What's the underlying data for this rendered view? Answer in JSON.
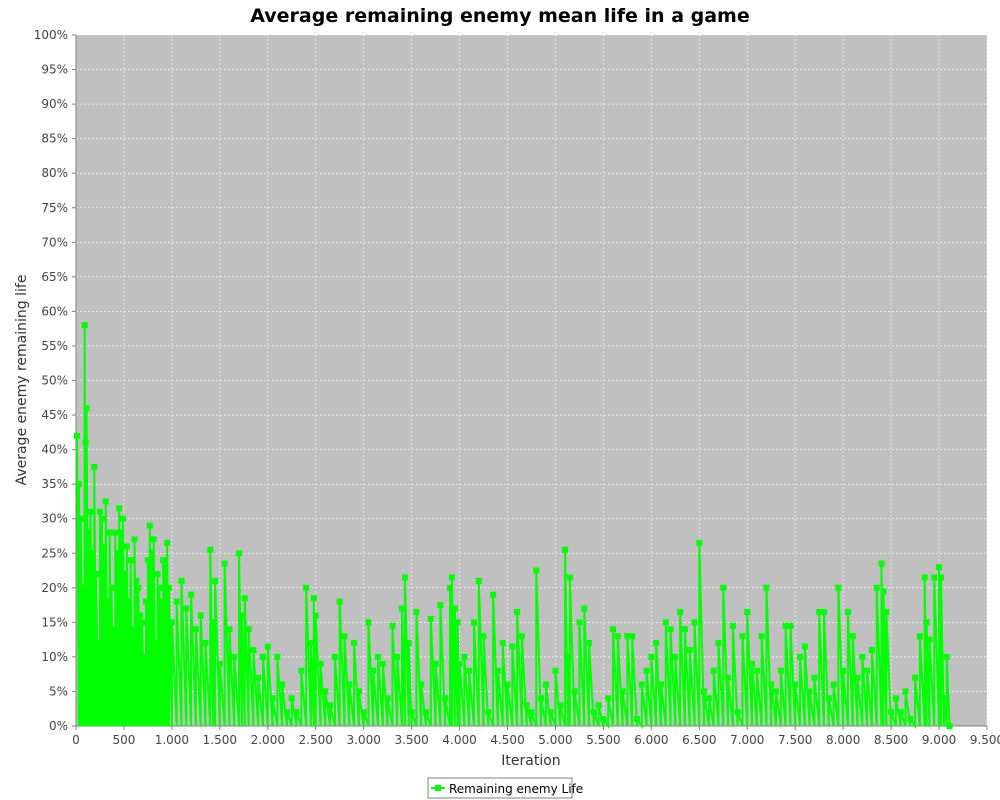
{
  "chart_data": {
    "type": "line",
    "title": "Average remaining enemy mean life in a game",
    "xlabel": "Iteration",
    "ylabel": "Average enemy remaining life",
    "xlim": [
      0,
      9500
    ],
    "ylim": [
      0,
      1
    ],
    "x_ticks": [
      0,
      500,
      1000,
      1500,
      2000,
      2500,
      3000,
      3500,
      4000,
      4500,
      5000,
      5500,
      6000,
      6500,
      7000,
      7500,
      8000,
      8500,
      9000,
      9500
    ],
    "x_tick_labels": [
      "0",
      "500",
      "1.000",
      "1.500",
      "2.000",
      "2.500",
      "3.000",
      "3.500",
      "4.000",
      "4.500",
      "5.000",
      "5.500",
      "6.000",
      "6.500",
      "7.000",
      "7.500",
      "8.000",
      "8.500",
      "9.000",
      "9.500"
    ],
    "y_ticks": [
      0,
      0.05,
      0.1,
      0.15,
      0.2,
      0.25,
      0.3,
      0.35,
      0.4,
      0.45,
      0.5,
      0.55,
      0.6,
      0.65,
      0.7,
      0.75,
      0.8,
      0.85,
      0.9,
      0.95,
      1.0
    ],
    "y_tick_labels": [
      "0%",
      "5%",
      "10%",
      "15%",
      "20%",
      "25%",
      "30%",
      "35%",
      "40%",
      "45%",
      "50%",
      "55%",
      "60%",
      "65%",
      "70%",
      "75%",
      "80%",
      "85%",
      "90%",
      "95%",
      "100%"
    ],
    "grid": true,
    "legend_position": "bottom-center",
    "colors": {
      "series": "#00ff00",
      "plot_background": "#c0c0c0",
      "grid": "#ffffff"
    },
    "series": [
      {
        "name": "Remaining enemy Life",
        "marker": "square",
        "points": [
          [
            10,
            0.42
          ],
          [
            30,
            0.35
          ],
          [
            50,
            0.3
          ],
          [
            70,
            0.2
          ],
          [
            90,
            0.58
          ],
          [
            100,
            0.41
          ],
          [
            110,
            0.46
          ],
          [
            130,
            0.28
          ],
          [
            150,
            0.31
          ],
          [
            170,
            0.25
          ],
          [
            190,
            0.375
          ],
          [
            210,
            0.22
          ],
          [
            230,
            0.12
          ],
          [
            250,
            0.31
          ],
          [
            270,
            0.3
          ],
          [
            290,
            0.26
          ],
          [
            310,
            0.325
          ],
          [
            330,
            0.18
          ],
          [
            350,
            0.28
          ],
          [
            370,
            0.2
          ],
          [
            390,
            0.14
          ],
          [
            410,
            0.28
          ],
          [
            430,
            0.25
          ],
          [
            450,
            0.315
          ],
          [
            470,
            0.28
          ],
          [
            490,
            0.3
          ],
          [
            510,
            0.22
          ],
          [
            530,
            0.26
          ],
          [
            550,
            0.18
          ],
          [
            570,
            0.24
          ],
          [
            590,
            0.14
          ],
          [
            610,
            0.27
          ],
          [
            630,
            0.21
          ],
          [
            650,
            0.2
          ],
          [
            670,
            0.16
          ],
          [
            690,
            0.15
          ],
          [
            710,
            0.1
          ],
          [
            730,
            0.18
          ],
          [
            750,
            0.24
          ],
          [
            770,
            0.29
          ],
          [
            790,
            0.25
          ],
          [
            810,
            0.27
          ],
          [
            830,
            0.12
          ],
          [
            850,
            0.22
          ],
          [
            870,
            0.2
          ],
          [
            890,
            0.18
          ],
          [
            910,
            0.24
          ],
          [
            930,
            0.23
          ],
          [
            950,
            0.265
          ],
          [
            970,
            0.2
          ],
          [
            1000,
            0.15
          ],
          [
            1050,
            0.18
          ],
          [
            1100,
            0.21
          ],
          [
            1150,
            0.17
          ],
          [
            1200,
            0.19
          ],
          [
            1250,
            0.14
          ],
          [
            1300,
            0.16
          ],
          [
            1350,
            0.12
          ],
          [
            1400,
            0.255
          ],
          [
            1430,
            0.15
          ],
          [
            1450,
            0.21
          ],
          [
            1500,
            0.09
          ],
          [
            1550,
            0.235
          ],
          [
            1600,
            0.14
          ],
          [
            1650,
            0.1
          ],
          [
            1700,
            0.25
          ],
          [
            1730,
            0.16
          ],
          [
            1760,
            0.185
          ],
          [
            1800,
            0.14
          ],
          [
            1850,
            0.11
          ],
          [
            1900,
            0.07
          ],
          [
            1950,
            0.1
          ],
          [
            2000,
            0.115
          ],
          [
            2050,
            0.04
          ],
          [
            2100,
            0.1
          ],
          [
            2150,
            0.06
          ],
          [
            2200,
            0.02
          ],
          [
            2250,
            0.04
          ],
          [
            2300,
            0.02
          ],
          [
            2350,
            0.08
          ],
          [
            2400,
            0.2
          ],
          [
            2450,
            0.12
          ],
          [
            2480,
            0.185
          ],
          [
            2500,
            0.16
          ],
          [
            2550,
            0.09
          ],
          [
            2600,
            0.05
          ],
          [
            2650,
            0.03
          ],
          [
            2700,
            0.1
          ],
          [
            2750,
            0.18
          ],
          [
            2800,
            0.13
          ],
          [
            2850,
            0.06
          ],
          [
            2900,
            0.12
          ],
          [
            2950,
            0.05
          ],
          [
            3000,
            0.02
          ],
          [
            3050,
            0.15
          ],
          [
            3100,
            0.08
          ],
          [
            3150,
            0.1
          ],
          [
            3200,
            0.09
          ],
          [
            3250,
            0.04
          ],
          [
            3300,
            0.145
          ],
          [
            3350,
            0.1
          ],
          [
            3400,
            0.17
          ],
          [
            3430,
            0.215
          ],
          [
            3470,
            0.12
          ],
          [
            3500,
            0.02
          ],
          [
            3550,
            0.165
          ],
          [
            3600,
            0.06
          ],
          [
            3650,
            0.02
          ],
          [
            3700,
            0.155
          ],
          [
            3750,
            0.09
          ],
          [
            3800,
            0.175
          ],
          [
            3850,
            0.04
          ],
          [
            3900,
            0.2
          ],
          [
            3920,
            0.215
          ],
          [
            3950,
            0.17
          ],
          [
            3980,
            0.15
          ],
          [
            4000,
            0.09
          ],
          [
            4050,
            0.1
          ],
          [
            4100,
            0.08
          ],
          [
            4150,
            0.15
          ],
          [
            4200,
            0.21
          ],
          [
            4250,
            0.13
          ],
          [
            4300,
            0.02
          ],
          [
            4350,
            0.19
          ],
          [
            4400,
            0.08
          ],
          [
            4450,
            0.12
          ],
          [
            4500,
            0.06
          ],
          [
            4550,
            0.115
          ],
          [
            4600,
            0.165
          ],
          [
            4650,
            0.13
          ],
          [
            4700,
            0.03
          ],
          [
            4750,
            0.02
          ],
          [
            4800,
            0.225
          ],
          [
            4850,
            0.04
          ],
          [
            4900,
            0.06
          ],
          [
            4950,
            0.02
          ],
          [
            5000,
            0.08
          ],
          [
            5050,
            0.03
          ],
          [
            5100,
            0.255
          ],
          [
            5130,
            0.1
          ],
          [
            5150,
            0.215
          ],
          [
            5200,
            0.05
          ],
          [
            5250,
            0.15
          ],
          [
            5300,
            0.17
          ],
          [
            5350,
            0.12
          ],
          [
            5400,
            0.02
          ],
          [
            5450,
            0.03
          ],
          [
            5500,
            0.01
          ],
          [
            5550,
            0.04
          ],
          [
            5600,
            0.14
          ],
          [
            5650,
            0.13
          ],
          [
            5700,
            0.05
          ],
          [
            5750,
            0.13
          ],
          [
            5800,
            0.13
          ],
          [
            5850,
            0.01
          ],
          [
            5900,
            0.06
          ],
          [
            5950,
            0.08
          ],
          [
            6000,
            0.1
          ],
          [
            6050,
            0.12
          ],
          [
            6100,
            0.06
          ],
          [
            6150,
            0.15
          ],
          [
            6200,
            0.14
          ],
          [
            6250,
            0.1
          ],
          [
            6300,
            0.165
          ],
          [
            6350,
            0.14
          ],
          [
            6400,
            0.11
          ],
          [
            6450,
            0.15
          ],
          [
            6500,
            0.265
          ],
          [
            6550,
            0.05
          ],
          [
            6600,
            0.04
          ],
          [
            6650,
            0.08
          ],
          [
            6700,
            0.12
          ],
          [
            6750,
            0.2
          ],
          [
            6800,
            0.07
          ],
          [
            6850,
            0.145
          ],
          [
            6900,
            0.02
          ],
          [
            6950,
            0.13
          ],
          [
            7000,
            0.165
          ],
          [
            7050,
            0.09
          ],
          [
            7100,
            0.08
          ],
          [
            7150,
            0.13
          ],
          [
            7200,
            0.2
          ],
          [
            7250,
            0.06
          ],
          [
            7300,
            0.05
          ],
          [
            7350,
            0.08
          ],
          [
            7400,
            0.145
          ],
          [
            7450,
            0.145
          ],
          [
            7500,
            0.06
          ],
          [
            7550,
            0.1
          ],
          [
            7600,
            0.115
          ],
          [
            7650,
            0.05
          ],
          [
            7700,
            0.07
          ],
          [
            7750,
            0.165
          ],
          [
            7800,
            0.165
          ],
          [
            7850,
            0.04
          ],
          [
            7900,
            0.06
          ],
          [
            7950,
            0.2
          ],
          [
            8000,
            0.08
          ],
          [
            8050,
            0.165
          ],
          [
            8100,
            0.13
          ],
          [
            8150,
            0.07
          ],
          [
            8200,
            0.1
          ],
          [
            8250,
            0.08
          ],
          [
            8300,
            0.11
          ],
          [
            8350,
            0.2
          ],
          [
            8400,
            0.235
          ],
          [
            8420,
            0.195
          ],
          [
            8450,
            0.165
          ],
          [
            8500,
            0.02
          ],
          [
            8550,
            0.04
          ],
          [
            8600,
            0.02
          ],
          [
            8650,
            0.05
          ],
          [
            8700,
            0.01
          ],
          [
            8750,
            0.07
          ],
          [
            8800,
            0.13
          ],
          [
            8850,
            0.215
          ],
          [
            8870,
            0.15
          ],
          [
            8900,
            0.125
          ],
          [
            8950,
            0.215
          ],
          [
            9000,
            0.23
          ],
          [
            9020,
            0.215
          ],
          [
            9050,
            0.04
          ],
          [
            9080,
            0.1
          ],
          [
            9110,
            0.0
          ]
        ]
      }
    ]
  }
}
